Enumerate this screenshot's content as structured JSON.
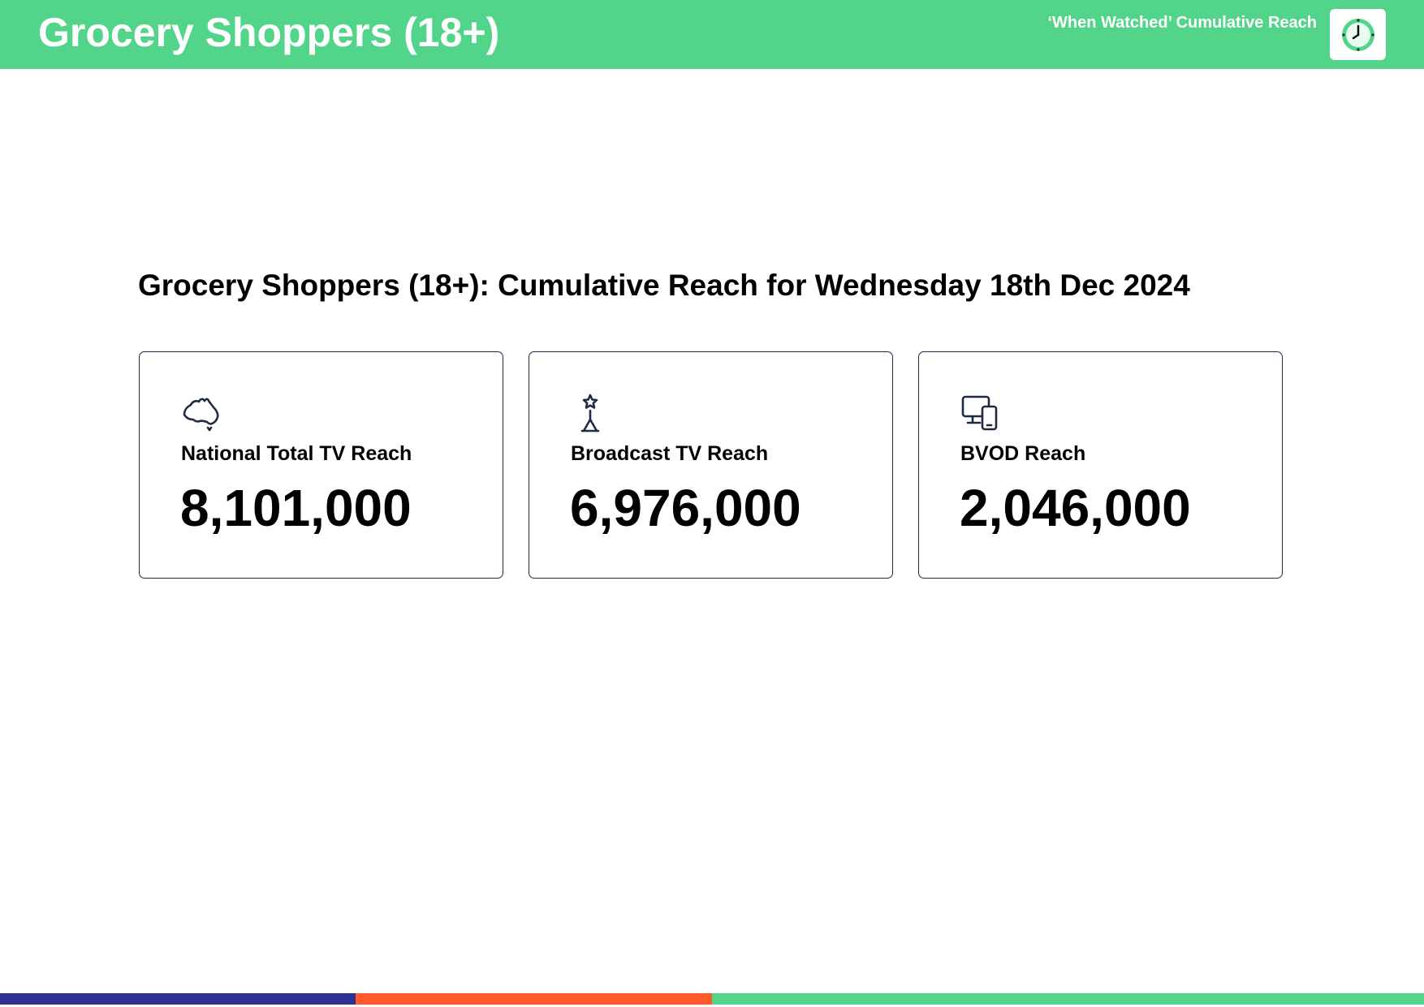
{
  "header": {
    "title": "Grocery Shoppers (18+)",
    "subtitle": "‘When Watched’ Cumulative Reach",
    "badge_icon": "clock-icon"
  },
  "main": {
    "title": "Grocery Shoppers (18+): Cumulative Reach for Wednesday 18th Dec 2024",
    "cards": [
      {
        "icon": "australia-map-icon",
        "label": "National Total TV Reach",
        "value": "8,101,000"
      },
      {
        "icon": "broadcast-tower-icon",
        "label": "Broadcast TV Reach",
        "value": "6,976,000"
      },
      {
        "icon": "devices-icon",
        "label": "BVOD Reach",
        "value": "2,046,000"
      }
    ]
  },
  "colors": {
    "header_bg": "#52d48a",
    "header_text": "#ffffff",
    "card_border": "#1f2a44",
    "footer": [
      "#2e3192",
      "#ff5a2a",
      "#52d48a"
    ]
  }
}
